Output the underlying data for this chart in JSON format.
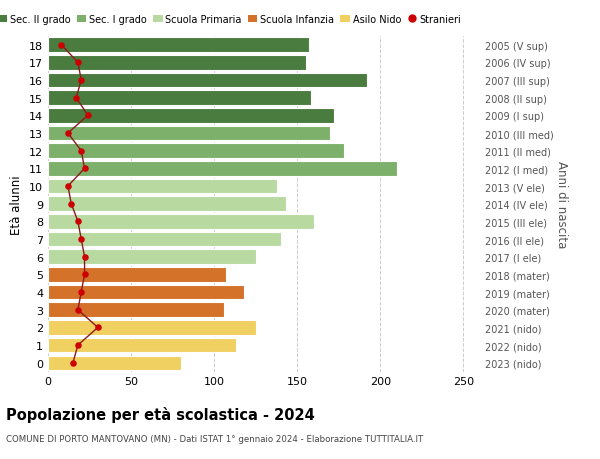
{
  "ages": [
    18,
    17,
    16,
    15,
    14,
    13,
    12,
    11,
    10,
    9,
    8,
    7,
    6,
    5,
    4,
    3,
    2,
    1,
    0
  ],
  "right_labels": [
    "2005 (V sup)",
    "2006 (IV sup)",
    "2007 (III sup)",
    "2008 (II sup)",
    "2009 (I sup)",
    "2010 (III med)",
    "2011 (II med)",
    "2012 (I med)",
    "2013 (V ele)",
    "2014 (IV ele)",
    "2015 (III ele)",
    "2016 (II ele)",
    "2017 (I ele)",
    "2018 (mater)",
    "2019 (mater)",
    "2020 (mater)",
    "2021 (nido)",
    "2022 (nido)",
    "2023 (nido)"
  ],
  "bar_values": [
    157,
    155,
    192,
    158,
    172,
    170,
    178,
    210,
    138,
    143,
    160,
    140,
    125,
    107,
    118,
    106,
    125,
    113,
    80
  ],
  "bar_colors": [
    "#4a7c3f",
    "#4a7c3f",
    "#4a7c3f",
    "#4a7c3f",
    "#4a7c3f",
    "#7db06a",
    "#7db06a",
    "#7db06a",
    "#b8d9a0",
    "#b8d9a0",
    "#b8d9a0",
    "#b8d9a0",
    "#b8d9a0",
    "#d4722a",
    "#d4722a",
    "#d4722a",
    "#f0d060",
    "#f0d060",
    "#f0d060"
  ],
  "stranieri_values": [
    8,
    18,
    20,
    17,
    24,
    12,
    20,
    22,
    12,
    14,
    18,
    20,
    22,
    22,
    20,
    18,
    30,
    18,
    15
  ],
  "title": "Popolazione per età scolastica - 2024",
  "subtitle": "COMUNE DI PORTO MANTOVANO (MN) - Dati ISTAT 1° gennaio 2024 - Elaborazione TUTTITALIA.IT",
  "ylabel": "Età alunni",
  "ylabel_right": "Anni di nascita",
  "xlim": [
    0,
    260
  ],
  "xticks": [
    0,
    50,
    100,
    150,
    200,
    250
  ],
  "legend_labels": [
    "Sec. II grado",
    "Sec. I grado",
    "Scuola Primaria",
    "Scuola Infanzia",
    "Asilo Nido",
    "Stranieri"
  ],
  "legend_colors": [
    "#4a7c3f",
    "#7db06a",
    "#b8d9a0",
    "#d4722a",
    "#f0d060",
    "#cc0000"
  ],
  "bg_color": "#ffffff",
  "grid_color": "#cccccc",
  "bar_height": 0.82,
  "stranieri_line_color": "#8b1a1a",
  "stranieri_dot_color": "#cc0000"
}
